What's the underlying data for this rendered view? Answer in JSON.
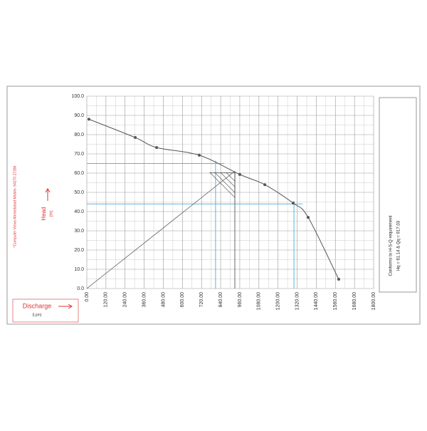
{
  "chart_data": {
    "type": "line",
    "x_label": "Discharge",
    "x_unit": "(Lpm)",
    "y_label": "Head",
    "y_unit": "(m)",
    "side_note": "*Computer Views Ahmedabad Mobile- 94270 27286",
    "result_text": [
      "Conforms to H-S-Q requirement",
      "Hq = 61.14 & Qq = 917.03"
    ],
    "x": [
      13,
      304,
      438,
      706,
      960,
      1117,
      1295,
      1389,
      1581
    ],
    "series": [
      {
        "color": "#555555",
        "values": [
          88,
          78.5,
          73.3,
          69.3,
          59.3,
          54,
          44.4,
          37,
          4.8
        ]
      }
    ],
    "guides": [
      {
        "x": 808,
        "y": 65
      },
      {
        "x": 1300,
        "y": 44
      }
    ],
    "guide_color": "#5ab4e0",
    "duty_point": {
      "x": 929,
      "y": 61
    },
    "xlim": [
      0,
      1800
    ],
    "ylim": [
      0,
      100
    ],
    "xticks": [
      {
        "value": 0,
        "label": "0.00"
      },
      {
        "value": 120,
        "label": "120.00"
      },
      {
        "value": 240,
        "label": "240.00"
      },
      {
        "value": 360,
        "label": "360.00"
      },
      {
        "value": 480,
        "label": "480.00"
      },
      {
        "value": 600,
        "label": "600.00"
      },
      {
        "value": 720,
        "label": "720.00"
      },
      {
        "value": 840,
        "label": "840.00"
      },
      {
        "value": 960,
        "label": "960.00"
      },
      {
        "value": 1080,
        "label": "1080.00"
      },
      {
        "value": 1200,
        "label": "1200.00"
      },
      {
        "value": 1320,
        "label": "1320.00"
      },
      {
        "value": 1440,
        "label": "1440.00"
      },
      {
        "value": 1560,
        "label": "1560.00"
      },
      {
        "value": 1680,
        "label": "1680.00"
      },
      {
        "value": 1800,
        "label": "1800.00"
      }
    ],
    "yticks": [
      {
        "value": 0,
        "label": "0.0"
      },
      {
        "value": 10,
        "label": "10.0"
      },
      {
        "value": 20,
        "label": "20.0"
      },
      {
        "value": 30,
        "label": "30.0"
      },
      {
        "value": 40,
        "label": "40.0"
      },
      {
        "value": 50,
        "label": "50.0"
      },
      {
        "value": 60,
        "label": "60.0"
      },
      {
        "value": 70,
        "label": "70.0"
      },
      {
        "value": 80,
        "label": "80.0"
      },
      {
        "value": 90,
        "label": "90.0"
      },
      {
        "value": 100,
        "label": "100.0"
      }
    ],
    "grid": true
  }
}
